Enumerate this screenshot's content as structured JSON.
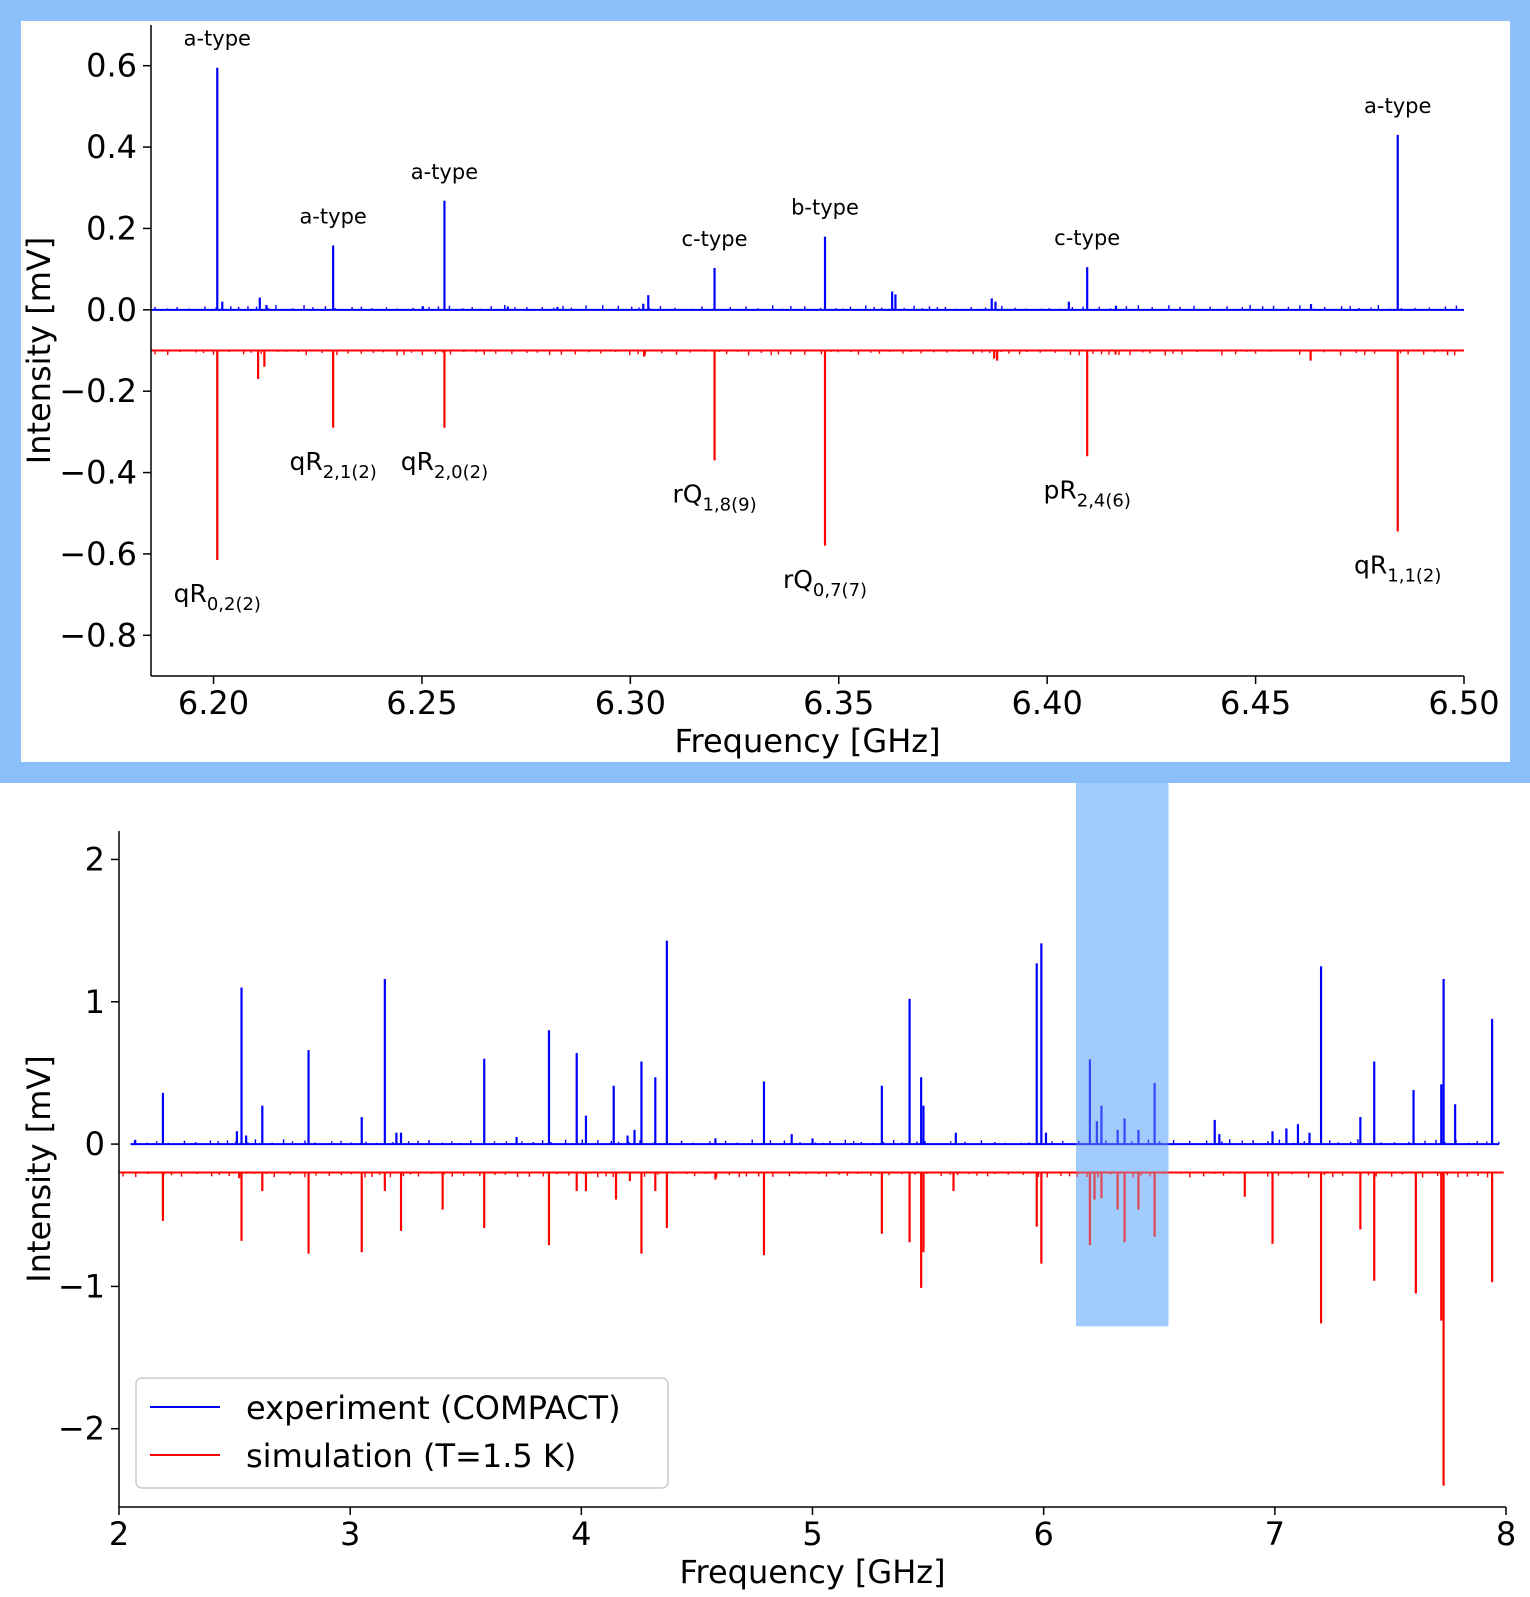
{
  "chart_data": [
    {
      "type": "line",
      "panel": "zoom",
      "xlabel": "Frequency [GHz]",
      "ylabel": "Intensity [mV]",
      "xlim": [
        6.185,
        6.5
      ],
      "ylim": [
        -0.9,
        0.7
      ],
      "xticks": [
        6.2,
        6.25,
        6.3,
        6.35,
        6.4,
        6.45,
        6.5
      ],
      "xtick_labels": [
        "6.20",
        "6.25",
        "6.30",
        "6.35",
        "6.40",
        "6.45",
        "6.50"
      ],
      "yticks": [
        0.6,
        0.4,
        0.2,
        0.0,
        -0.2,
        -0.4,
        -0.6,
        -0.8
      ],
      "ytick_labels": [
        "0.6",
        "0.4",
        "0.2",
        "0.0",
        "−0.2",
        "−0.4",
        "−0.6",
        "−0.8"
      ],
      "frame_color": "#8bbff9",
      "series": [
        {
          "name": "experiment (COMPACT)",
          "color": "#0000ff",
          "baseline": 0.0,
          "x_range": [
            6.185,
            6.5
          ],
          "peaks": [
            [
              6.2009,
              0.595
            ],
            [
              6.2021,
              0.02
            ],
            [
              6.2111,
              0.03
            ],
            [
              6.2127,
              0.012
            ],
            [
              6.2287,
              0.158
            ],
            [
              6.2502,
              0.009
            ],
            [
              6.2554,
              0.268
            ],
            [
              6.2706,
              0.008
            ],
            [
              6.2825,
              0.007
            ],
            [
              6.3031,
              0.015
            ],
            [
              6.3043,
              0.036
            ],
            [
              6.3202,
              0.103
            ],
            [
              6.3467,
              0.18
            ],
            [
              6.3628,
              0.045
            ],
            [
              6.3636,
              0.038
            ],
            [
              6.3867,
              0.028
            ],
            [
              6.3876,
              0.02
            ],
            [
              6.4052,
              0.02
            ],
            [
              6.4096,
              0.105
            ],
            [
              6.4165,
              0.01
            ],
            [
              6.4633,
              0.014
            ],
            [
              6.4841,
              0.43
            ]
          ]
        },
        {
          "name": "simulation (T=1.5 K)",
          "color": "#ff0000",
          "baseline": -0.1,
          "x_range": [
            6.185,
            6.5
          ],
          "peaks": [
            [
              6.2009,
              -0.615
            ],
            [
              6.2107,
              -0.17
            ],
            [
              6.2122,
              -0.14
            ],
            [
              6.2287,
              -0.29
            ],
            [
              6.2554,
              -0.29
            ],
            [
              6.3033,
              -0.115
            ],
            [
              6.3202,
              -0.37
            ],
            [
              6.3467,
              -0.58
            ],
            [
              6.3873,
              -0.12
            ],
            [
              6.388,
              -0.125
            ],
            [
              6.4096,
              -0.36
            ],
            [
              6.4164,
              -0.11
            ],
            [
              6.4632,
              -0.125
            ],
            [
              6.4841,
              -0.545
            ]
          ]
        }
      ],
      "annotations_top": [
        {
          "text": "a-type",
          "at_x": 6.2009
        },
        {
          "text": "a-type",
          "at_x": 6.2287
        },
        {
          "text": "a-type",
          "at_x": 6.2554
        },
        {
          "text": "c-type",
          "at_x": 6.3202
        },
        {
          "text": "b-type",
          "at_x": 6.3467
        },
        {
          "text": "c-type",
          "at_x": 6.4096
        },
        {
          "text": "a-type",
          "at_x": 6.4841
        }
      ],
      "annotations_bottom": [
        {
          "base": "qR",
          "sub": "0,2(2)",
          "at_x": 6.2009
        },
        {
          "base": "qR",
          "sub": "2,1(2)",
          "at_x": 6.2287
        },
        {
          "base": "qR",
          "sub": "2,0(2)",
          "at_x": 6.2554
        },
        {
          "base": "rQ",
          "sub": "1,8(9)",
          "at_x": 6.3202
        },
        {
          "base": "rQ",
          "sub": "0,7(7)",
          "at_x": 6.3467
        },
        {
          "base": "pR",
          "sub": "2,4(6)",
          "at_x": 6.4096
        },
        {
          "base": "qR",
          "sub": "1,1(2)",
          "at_x": 6.4841
        }
      ]
    },
    {
      "type": "line",
      "panel": "full",
      "xlabel": "Frequency [GHz]",
      "ylabel": "Intensity [mV]",
      "xlim": [
        2,
        8
      ],
      "ylim": [
        -2.55,
        2.2
      ],
      "xticks": [
        2,
        3,
        4,
        5,
        6,
        7,
        8
      ],
      "xtick_labels": [
        "2",
        "3",
        "4",
        "5",
        "6",
        "7",
        "8"
      ],
      "yticks": [
        2,
        1,
        0,
        -1,
        -2
      ],
      "ytick_labels": [
        "2",
        "1",
        "0",
        "−1",
        "−2"
      ],
      "highlight": {
        "x": [
          6.14,
          6.54
        ],
        "y": [
          -1.28,
          2.2
        ],
        "color": "#a0cbfc"
      },
      "legend": {
        "position": "lower-left",
        "entries": [
          "experiment (COMPACT)",
          "simulation (T=1.5 K)"
        ]
      },
      "series": [
        {
          "name": "experiment (COMPACT)",
          "color": "#0000ff",
          "baseline": 0.0,
          "x_range": [
            2.05,
            7.97
          ],
          "peaks": [
            [
              2.07,
              0.03
            ],
            [
              2.19,
              0.36
            ],
            [
              2.51,
              0.09
            ],
            [
              2.53,
              1.1
            ],
            [
              2.55,
              0.06
            ],
            [
              2.62,
              0.27
            ],
            [
              2.82,
              0.66
            ],
            [
              3.05,
              0.19
            ],
            [
              3.15,
              1.16
            ],
            [
              3.2,
              0.08
            ],
            [
              3.22,
              0.08
            ],
            [
              3.58,
              0.6
            ],
            [
              3.72,
              0.05
            ],
            [
              3.86,
              0.8
            ],
            [
              3.98,
              0.64
            ],
            [
              4.02,
              0.2
            ],
            [
              4.14,
              0.41
            ],
            [
              4.2,
              0.06
            ],
            [
              4.23,
              0.1
            ],
            [
              4.26,
              0.58
            ],
            [
              4.32,
              0.47
            ],
            [
              4.37,
              1.43
            ],
            [
              4.58,
              0.04
            ],
            [
              4.79,
              0.44
            ],
            [
              4.91,
              0.07
            ],
            [
              5.0,
              0.04
            ],
            [
              5.3,
              0.41
            ],
            [
              5.42,
              1.02
            ],
            [
              5.47,
              0.47
            ],
            [
              5.48,
              0.27
            ],
            [
              5.62,
              0.08
            ],
            [
              5.97,
              1.27
            ],
            [
              5.99,
              1.41
            ],
            [
              6.01,
              0.08
            ],
            [
              6.2,
              0.595
            ],
            [
              6.23,
              0.16
            ],
            [
              6.25,
              0.27
            ],
            [
              6.32,
              0.1
            ],
            [
              6.35,
              0.18
            ],
            [
              6.41,
              0.1
            ],
            [
              6.48,
              0.43
            ],
            [
              6.74,
              0.17
            ],
            [
              6.76,
              0.07
            ],
            [
              6.99,
              0.09
            ],
            [
              7.05,
              0.11
            ],
            [
              7.1,
              0.14
            ],
            [
              7.15,
              0.08
            ],
            [
              7.2,
              1.25
            ],
            [
              7.37,
              0.19
            ],
            [
              7.43,
              0.58
            ],
            [
              7.6,
              0.38
            ],
            [
              7.72,
              0.42
            ],
            [
              7.73,
              1.16
            ],
            [
              7.78,
              0.28
            ],
            [
              7.94,
              0.88
            ]
          ]
        },
        {
          "name": "simulation (T=1.5 K)",
          "color": "#ff0000",
          "baseline": -0.2,
          "x_range": [
            2.0,
            7.99
          ],
          "peaks": [
            [
              2.19,
              -0.54
            ],
            [
              2.52,
              -0.24
            ],
            [
              2.53,
              -0.68
            ],
            [
              2.62,
              -0.33
            ],
            [
              2.82,
              -0.77
            ],
            [
              3.05,
              -0.76
            ],
            [
              3.15,
              -0.33
            ],
            [
              3.22,
              -0.61
            ],
            [
              3.4,
              -0.46
            ],
            [
              3.58,
              -0.59
            ],
            [
              3.86,
              -0.71
            ],
            [
              3.98,
              -0.33
            ],
            [
              4.02,
              -0.33
            ],
            [
              4.15,
              -0.39
            ],
            [
              4.21,
              -0.26
            ],
            [
              4.26,
              -0.77
            ],
            [
              4.32,
              -0.33
            ],
            [
              4.37,
              -0.59
            ],
            [
              4.58,
              -0.25
            ],
            [
              4.79,
              -0.78
            ],
            [
              5.3,
              -0.63
            ],
            [
              5.42,
              -0.69
            ],
            [
              5.47,
              -1.01
            ],
            [
              5.48,
              -0.76
            ],
            [
              5.61,
              -0.33
            ],
            [
              5.97,
              -0.58
            ],
            [
              5.99,
              -0.84
            ],
            [
              6.2,
              -0.71
            ],
            [
              6.22,
              -0.39
            ],
            [
              6.25,
              -0.38
            ],
            [
              6.32,
              -0.46
            ],
            [
              6.35,
              -0.69
            ],
            [
              6.41,
              -0.46
            ],
            [
              6.48,
              -0.65
            ],
            [
              6.87,
              -0.37
            ],
            [
              6.99,
              -0.7
            ],
            [
              7.2,
              -1.26
            ],
            [
              7.37,
              -0.6
            ],
            [
              7.43,
              -0.96
            ],
            [
              7.61,
              -1.05
            ],
            [
              7.72,
              -1.24
            ],
            [
              7.73,
              -2.4
            ],
            [
              7.94,
              -0.97
            ]
          ]
        }
      ]
    }
  ]
}
